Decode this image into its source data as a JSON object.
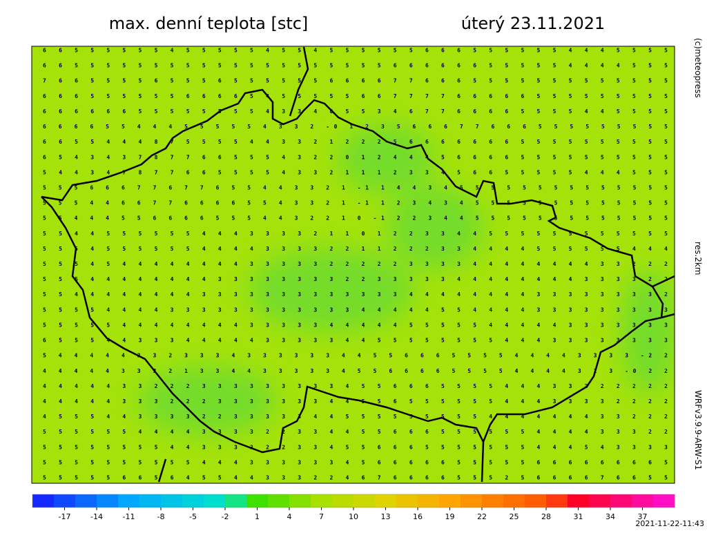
{
  "header": {
    "title": "max. denní teplota [stc]",
    "date": "úterý 23.11.2021"
  },
  "side": {
    "copyright": "(c)meteopress",
    "resolution": "res.2km",
    "model": "WRFv3.9.9-ARW-S1"
  },
  "footer": {
    "timestamp": "2021-11-22-11:43"
  },
  "grid": {
    "rows": [
      "6 6 5 5 5 5 5 5 4 5 5 5 5 5 4 5 5 4 5 5 5 5 5 5 6 6 6 5 5 5 5 5 5 4 4 4 5 5 5 5",
      "6 6 5 5 5 5 5 5 5 5 5 5 5 5 5 5 5 5 5 5 5 5 6 6 6 6 6 6 5 5 5 5 5 4 4 4 4 5 5 5",
      "7 6 6 5 5 5 5 6 5 5 5 6 5 5 5 5 5 5 6 6 6 6 7 7 6 6 6 5 5 5 5 5 5 5 5 5 5 5 5 5",
      "6 6 6 5 5 5 5 5 5 6 6 6 6 5 4 5 5 5 5 5 6 6 7 7 7 7 6 6 6 6 6 5 5 5 5 5 5 5 5 5",
      "6 6 6 6 6 6 5 5 5 5 5 5 5 5 4 3 3 4 0 5 5 3 4 6 7 7 6 6 6 6 5 5 5 5 4 4 5 5 5 5",
      "6 6 6 6 5 5 4 4 4 5 5 5 5 5 4 3 3 2 -0 1 2 3 5 6 6 6 7 7 6 6 6 5 5 5 5 5 5 5 5 5",
      "6 6 5 5 4 4 4 8 7 5 5 5 5 4 4 3 3 2 1 2 2 2 5 6 6 6 6 6 6 6 5 5 5 5 5 5 5 5 5 5",
      "6 5 4 3 4 3 7 8 7 7 6 6 5 5 5 4 3 2 2 0 1 2 4 4 4 5 6 6 6 6 5 5 5 5 5 5 5 5 5 5",
      "5 4 4 3 4 7 8 7 7 6 6 5 5 5 5 4 3 3 2 1 1 1 2 3 3 4 5 6 6 5 5 5 5 5 4 4 4 5 5 5",
      "5 5 5 6 6 6 7 7 6 7 7 6 5 5 4 4 3 3 2 1 -1 1 4 4 3 4 5 5 5 5 5 5 5 5 5 5 5 5 5 5",
      "5 5 5 4 4 6 6 7 7 6 6 6 6 5 5 4 3 3 2 1 -1 1 2 3 4 3 4 5 5 5 5 5 5 5 5 5 5 5 5 5",
      "5 5 4 4 4 5 5 6 6 6 6 5 5 5 4 4 3 2 2 1 0 -1 2 2 3 4 4 5 5 5 5 5 5 5 5 5 5 5 5 5",
      "5 5 4 4 5 5 5 5 5 5 4 4 4 3 3 3 3 2 1 1 0 1 2 2 3 3 4 4 5 5 5 5 5 5 5 5 5 5 5 5",
      "5 5 5 4 5 5 5 5 5 5 4 4 4 4 3 3 3 3 2 2 1 1 2 2 2 3 3 4 4 4 4 5 5 5 5 5 5 4 4 4",
      "5 5 5 4 5 4 4 4 4 4 4 4 4 3 3 3 3 3 2 2 2 2 2 3 3 3 3 4 4 4 4 4 4 4 4 3 3 2 2 2",
      "5 5 5 4 4 4 4 4 4 4 4 3 3 3 3 3 3 3 3 2 2 3 3 3 3 3 4 4 4 4 4 4 4 4 3 3 3 3 2 2",
      "5 5 4 4 4 4 4 4 4 4 3 3 3 3 3 3 3 3 3 3 3 3 3 4 4 4 4 4 4 4 4 3 3 3 3 3 3 3 3 2",
      "5 5 5 5 4 4 4 4 3 3 3 3 3 3 3 3 3 3 3 3 4 4 4 4 4 5 5 4 4 4 4 3 3 3 3 3 3 3 3 3",
      "5 5 5 5 5 4 4 4 4 4 4 4 4 3 3 3 3 3 4 4 4 4 4 5 5 5 5 5 4 4 4 4 4 3 3 3 3 3 3 3",
      "6 5 5 5 4 4 3 3 3 4 4 4 4 4 3 3 3 3 3 4 4 5 5 5 5 5 5 5 5 4 4 4 3 3 3 3 3 3 3 3",
      "5 4 4 4 4 4 3 3 2 3 3 3 4 3 3 3 3 3 3 4 4 5 5 6 6 6 5 5 5 5 4 4 4 4 3 3 3 3 -2 2",
      "4 4 4 4 4 3 3 3 2 1 3 3 4 4 3 3 3 3 3 4 5 5 6 6 6 6 5 5 5 5 4 4 4 4 3 2 3 -0 2 2",
      "4 4 4 4 4 3 3 2 2 2 3 3 3 3 3 3 3 3 3 4 5 5 6 6 6 5 5 5 5 4 4 4 3 3 3 2 2 2 2 2",
      "4 4 4 4 4 3 3 3 2 2 2 3 3 3 3 3 3 3 4 4 5 5 6 5 5 5 5 5 5 4 4 4 3 3 3 3 2 2 2 2",
      "4 5 5 5 4 4 3 3 3 3 2 2 3 3 3 3 3 4 4 5 5 5 5 5 5 5 5 5 4 4 4 4 4 4 4 3 3 2 2 2",
      "5 5 5 5 5 5 4 4 4 4 3 3 3 3 2 2 3 3 4 4 5 5 6 6 6 5 5 5 5 5 5 4 4 4 4 3 3 3 2 2",
      "5 5 5 5 5 5 5 5 4 4 3 3 3 3 2 2 3 3 4 5 5 6 6 6 5 5 5 5 5 5 5 4 4 4 5 4 3 3 3 3",
      "5 5 5 5 5 5 5 5 5 5 4 4 4 3 3 3 3 3 3 4 5 6 6 6 6 6 5 5 5 5 5 6 6 6 6 6 6 6 6 5",
      "5 5 5 5 5 6 6 5 6 4 5 5 4 4 3 3 3 2 2 4 6 7 6 6 6 6 5 5 5 2 5 6 6 6 6 7 6 6 5 5"
    ]
  },
  "colorbar": {
    "range": [
      -20,
      40
    ],
    "ticks": [
      -17,
      -14,
      -11,
      -8,
      -5,
      -2,
      1,
      4,
      7,
      10,
      13,
      16,
      19,
      22,
      25,
      28,
      31,
      34,
      37
    ]
  }
}
